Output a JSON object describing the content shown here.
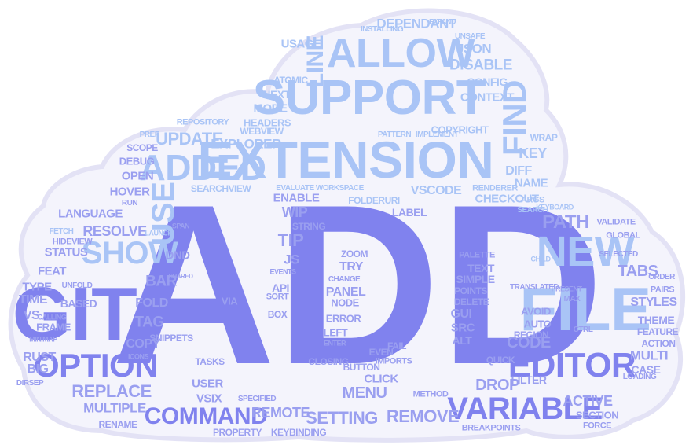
{
  "cloud": {
    "colors": {
      "outline": "#e3e2f5",
      "fill": "#f4f4fc",
      "primary": "#8082ee",
      "light": "#a9c4f6",
      "mid": "#9a9ff0"
    },
    "words": [
      {
        "text": "ADD",
        "c": "primary"
      },
      {
        "text": "EXTENSION",
        "c": "light"
      },
      {
        "text": "SUPPORT",
        "c": "light"
      },
      {
        "text": "ALLOW",
        "c": "light"
      },
      {
        "text": "ADDED",
        "c": "light"
      },
      {
        "text": "GIT",
        "c": "primary"
      },
      {
        "text": "FILE",
        "c": "light"
      },
      {
        "text": "NEW",
        "c": "light"
      },
      {
        "text": "SHOW",
        "c": "light"
      },
      {
        "text": "OPTION",
        "c": "primary"
      },
      {
        "text": "EDITOR",
        "c": "primary"
      },
      {
        "text": "VARIABLE",
        "c": "primary"
      },
      {
        "text": "COMMAND",
        "c": "primary"
      },
      {
        "text": "USE",
        "c": "light"
      },
      {
        "text": "FIND",
        "c": "light"
      },
      {
        "text": "LINE",
        "c": "light"
      },
      {
        "text": "REPLACE",
        "c": "mid"
      },
      {
        "text": "SETTING",
        "c": "mid"
      },
      {
        "text": "REMOVE",
        "c": "mid"
      },
      {
        "text": "PATH",
        "c": "mid"
      },
      {
        "text": "UPDATE",
        "c": "light"
      },
      {
        "text": "EXPLORER",
        "c": "light"
      },
      {
        "text": "DISABLE",
        "c": "light"
      },
      {
        "text": "DEPENDANT",
        "c": "light"
      },
      {
        "text": "USAGE",
        "c": "light"
      },
      {
        "text": "JSON",
        "c": "light"
      },
      {
        "text": "CONTEXT",
        "c": "light"
      },
      {
        "text": "CONFIG",
        "c": "light"
      },
      {
        "text": "KEY",
        "c": "light"
      },
      {
        "text": "DIFF",
        "c": "light"
      },
      {
        "text": "NAME",
        "c": "light"
      },
      {
        "text": "CHECKOUT",
        "c": "light"
      },
      {
        "text": "VSCODE",
        "c": "light"
      },
      {
        "text": "TABS",
        "c": "mid"
      },
      {
        "text": "STYLES",
        "c": "mid"
      },
      {
        "text": "THEME",
        "c": "mid"
      },
      {
        "text": "FEATURE",
        "c": "mid"
      },
      {
        "text": "ACTION",
        "c": "mid"
      },
      {
        "text": "MULTI",
        "c": "mid"
      },
      {
        "text": "CASE",
        "c": "mid"
      },
      {
        "text": "ACTIVE",
        "c": "mid"
      },
      {
        "text": "SECTION",
        "c": "mid"
      },
      {
        "text": "FORCE",
        "c": "mid"
      },
      {
        "text": "CODE",
        "c": "mid"
      },
      {
        "text": "DROP",
        "c": "mid"
      },
      {
        "text": "FILTER",
        "c": "mid"
      },
      {
        "text": "QUICK",
        "c": "mid"
      },
      {
        "text": "REGION",
        "c": "mid"
      },
      {
        "text": "AUTO",
        "c": "mid"
      },
      {
        "text": "AVOID",
        "c": "mid"
      },
      {
        "text": "MENU",
        "c": "mid"
      },
      {
        "text": "CLICK",
        "c": "mid"
      },
      {
        "text": "BUTTON",
        "c": "mid"
      },
      {
        "text": "EVEN",
        "c": "mid"
      },
      {
        "text": "REMOTE",
        "c": "mid"
      },
      {
        "text": "VSIX",
        "c": "mid"
      },
      {
        "text": "USER",
        "c": "mid"
      },
      {
        "text": "TASKS",
        "c": "mid"
      },
      {
        "text": "MULTIPLE",
        "c": "mid"
      },
      {
        "text": "RENAME",
        "c": "mid"
      },
      {
        "text": "PROPERTY",
        "c": "mid"
      },
      {
        "text": "KEYBINDING",
        "c": "mid"
      },
      {
        "text": "COPY",
        "c": "mid"
      },
      {
        "text": "TAG",
        "c": "mid"
      },
      {
        "text": "FOLD",
        "c": "mid"
      },
      {
        "text": "BAR",
        "c": "mid"
      },
      {
        "text": "DND",
        "c": "mid"
      },
      {
        "text": "TIP",
        "c": "mid"
      },
      {
        "text": "JS",
        "c": "mid"
      },
      {
        "text": "WIP",
        "c": "mid"
      },
      {
        "text": "ENABLE",
        "c": "mid"
      },
      {
        "text": "STRING",
        "c": "mid"
      },
      {
        "text": "LABEL",
        "c": "mid"
      },
      {
        "text": "TRY",
        "c": "mid"
      },
      {
        "text": "PANEL",
        "c": "mid"
      },
      {
        "text": "NODE",
        "c": "mid"
      },
      {
        "text": "API",
        "c": "mid"
      },
      {
        "text": "ZOOM",
        "c": "mid"
      },
      {
        "text": "TEXT",
        "c": "mid"
      },
      {
        "text": "SIMPLE",
        "c": "mid"
      },
      {
        "text": "POINTS",
        "c": "mid"
      },
      {
        "text": "DELETE",
        "c": "mid"
      },
      {
        "text": "GUI",
        "c": "mid"
      },
      {
        "text": "SRC",
        "c": "mid"
      },
      {
        "text": "ALT",
        "c": "mid"
      },
      {
        "text": "FAIL",
        "c": "mid"
      },
      {
        "text": "ERROR",
        "c": "mid"
      },
      {
        "text": "LEFT",
        "c": "mid"
      },
      {
        "text": "VIA",
        "c": "mid"
      },
      {
        "text": "PALETTE",
        "c": "mid"
      },
      {
        "text": "RESOLVE",
        "c": "mid"
      },
      {
        "text": "STATUS",
        "c": "mid"
      },
      {
        "text": "FEAT",
        "c": "mid"
      },
      {
        "text": "TYPE",
        "c": "mid"
      },
      {
        "text": "TIME",
        "c": "mid"
      },
      {
        "text": "VS",
        "c": "mid"
      },
      {
        "text": "RUST",
        "c": "mid"
      },
      {
        "text": "BIG",
        "c": "mid"
      },
      {
        "text": "BASED",
        "c": "mid"
      },
      {
        "text": "LANGUAGE",
        "c": "mid"
      },
      {
        "text": "HOVER",
        "c": "mid"
      },
      {
        "text": "OPEN",
        "c": "mid"
      },
      {
        "text": "DEBUG",
        "c": "mid"
      },
      {
        "text": "SCOPE",
        "c": "mid"
      },
      {
        "text": "RUN",
        "c": "mid"
      },
      {
        "text": "MODE",
        "c": "light"
      },
      {
        "text": "NEXT",
        "c": "light"
      },
      {
        "text": "HEADERS",
        "c": "light"
      },
      {
        "text": "WEBVIEW",
        "c": "light"
      },
      {
        "text": "REPOSITORY",
        "c": "light"
      },
      {
        "text": "COPYRIGHT",
        "c": "light"
      },
      {
        "text": "ATOMIC",
        "c": "light"
      },
      {
        "text": "SEARCHVIEW",
        "c": "light"
      },
      {
        "text": "FOLDERURI",
        "c": "light"
      },
      {
        "text": "RENDERER",
        "c": "light"
      },
      {
        "text": "EVALUATE WORKSPACE",
        "c": "light"
      },
      {
        "text": "INSTALLING",
        "c": "light"
      },
      {
        "text": "UNSAFE",
        "c": "light"
      },
      {
        "text": "EXPAND",
        "c": "light"
      },
      {
        "text": "WRAP",
        "c": "light"
      },
      {
        "text": "IMPLEMENT",
        "c": "light"
      },
      {
        "text": "PATTERN",
        "c": "light"
      },
      {
        "text": "SEARCH",
        "c": "light"
      },
      {
        "text": "LAUNCH",
        "c": "light"
      },
      {
        "text": "FETCH",
        "c": "light"
      },
      {
        "text": "VALIDATE",
        "c": "mid"
      },
      {
        "text": "SELECTED",
        "c": "mid"
      },
      {
        "text": "GLOBAL",
        "c": "mid"
      },
      {
        "text": "PAIRS",
        "c": "mid"
      },
      {
        "text": "ORDER",
        "c": "mid"
      },
      {
        "text": "TRANSLATED",
        "c": "mid"
      },
      {
        "text": "PRESENT",
        "c": "mid"
      },
      {
        "text": "LOADING",
        "c": "mid"
      },
      {
        "text": "SNIPPETS",
        "c": "mid"
      },
      {
        "text": "CLOSING",
        "c": "mid"
      },
      {
        "text": "METHOD",
        "c": "mid"
      },
      {
        "text": "BREAKPOINTS",
        "c": "mid"
      },
      {
        "text": "SPECIFIED",
        "c": "mid"
      },
      {
        "text": "MINIMAP",
        "c": "mid"
      },
      {
        "text": "FRAME",
        "c": "mid"
      },
      {
        "text": "CALLING",
        "c": "mid"
      },
      {
        "text": "UNFOLD",
        "c": "mid"
      },
      {
        "text": "HIDEVIEW",
        "c": "mid"
      },
      {
        "text": "ICONS",
        "c": "mid"
      },
      {
        "text": "BOX",
        "c": "mid"
      },
      {
        "text": "SORT",
        "c": "mid"
      },
      {
        "text": "ENTER",
        "c": "mid"
      },
      {
        "text": "CTRL",
        "c": "mid"
      },
      {
        "text": "MAX",
        "c": "mid"
      },
      {
        "text": "EVENTS",
        "c": "mid"
      },
      {
        "text": "CHANGE",
        "c": "mid"
      },
      {
        "text": "IMPORTS",
        "c": "mid"
      },
      {
        "text": "DIRSEP",
        "c": "mid"
      },
      {
        "text": "SPAN",
        "c": "mid"
      },
      {
        "text": "SHARED",
        "c": "mid"
      },
      {
        "text": "PREF",
        "c": "light"
      },
      {
        "text": "ARGS",
        "c": "light"
      },
      {
        "text": "CHILD",
        "c": "light"
      },
      {
        "text": "KEYBOARD",
        "c": "light"
      }
    ]
  }
}
